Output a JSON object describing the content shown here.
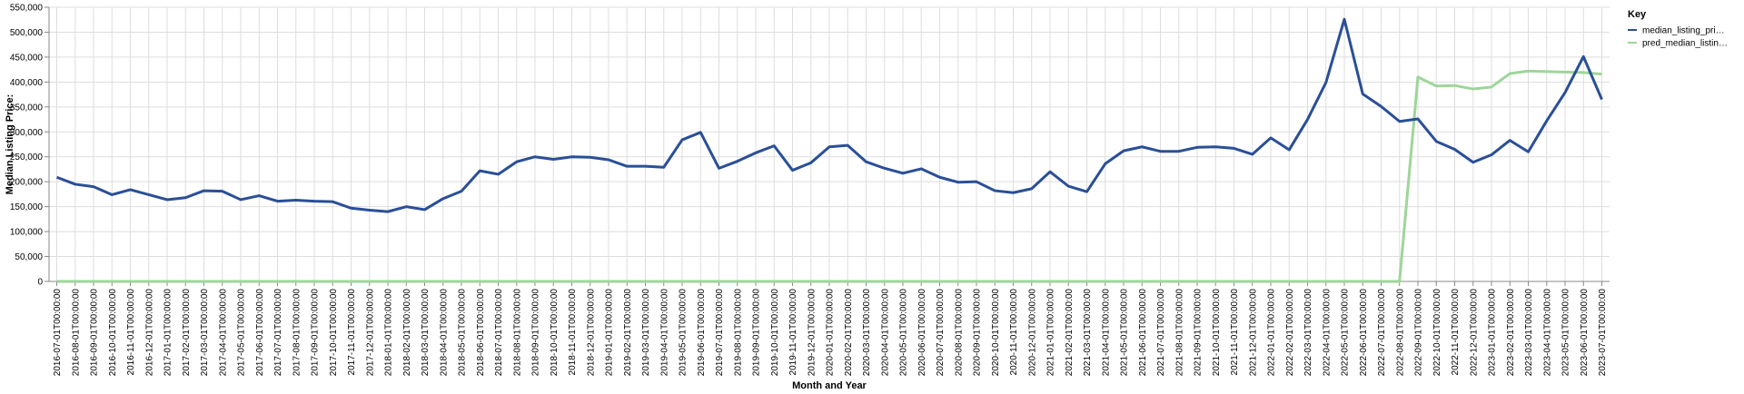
{
  "chart_data": {
    "type": "line",
    "xlabel": "Month and Year",
    "ylabel": "Median Listing Price:",
    "ylim": [
      0,
      550000
    ],
    "yticks": [
      0,
      50000,
      100000,
      150000,
      200000,
      250000,
      300000,
      350000,
      400000,
      450000,
      500000,
      550000
    ],
    "y_tick_labels": [
      "0",
      "50,000",
      "100,000",
      "150,000",
      "200,000",
      "250,000",
      "300,000",
      "350,000",
      "400,000",
      "450,000",
      "500,000",
      "550,000"
    ],
    "grid": true,
    "legend": {
      "title": "Key",
      "placement": "top-right",
      "entries": [
        "median_listing_pri…",
        "pred_median_listin…"
      ]
    },
    "x": [
      "2016-07-01T00:00:00",
      "2016-08-01T00:00:00",
      "2016-09-01T00:00:00",
      "2016-10-01T00:00:00",
      "2016-11-01T00:00:00",
      "2016-12-01T00:00:00",
      "2017-01-01T00:00:00",
      "2017-02-01T00:00:00",
      "2017-03-01T00:00:00",
      "2017-04-01T00:00:00",
      "2017-05-01T00:00:00",
      "2017-06-01T00:00:00",
      "2017-07-01T00:00:00",
      "2017-08-01T00:00:00",
      "2017-09-01T00:00:00",
      "2017-10-01T00:00:00",
      "2017-11-01T00:00:00",
      "2017-12-01T00:00:00",
      "2018-01-01T00:00:00",
      "2018-02-01T00:00:00",
      "2018-03-01T00:00:00",
      "2018-04-01T00:00:00",
      "2018-05-01T00:00:00",
      "2018-06-01T00:00:00",
      "2018-07-01T00:00:00",
      "2018-08-01T00:00:00",
      "2018-09-01T00:00:00",
      "2018-10-01T00:00:00",
      "2018-11-01T00:00:00",
      "2018-12-01T00:00:00",
      "2019-01-01T00:00:00",
      "2019-02-01T00:00:00",
      "2019-03-01T00:00:00",
      "2019-04-01T00:00:00",
      "2019-05-01T00:00:00",
      "2019-06-01T00:00:00",
      "2019-07-01T00:00:00",
      "2019-08-01T00:00:00",
      "2019-09-01T00:00:00",
      "2019-10-01T00:00:00",
      "2019-11-01T00:00:00",
      "2019-12-01T00:00:00",
      "2020-01-01T00:00:00",
      "2020-02-01T00:00:00",
      "2020-03-01T00:00:00",
      "2020-04-01T00:00:00",
      "2020-05-01T00:00:00",
      "2020-06-01T00:00:00",
      "2020-07-01T00:00:00",
      "2020-08-01T00:00:00",
      "2020-09-01T00:00:00",
      "2020-10-01T00:00:00",
      "2020-11-01T00:00:00",
      "2020-12-01T00:00:00",
      "2021-01-01T00:00:00",
      "2021-02-01T00:00:00",
      "2021-03-01T00:00:00",
      "2021-04-01T00:00:00",
      "2021-05-01T00:00:00",
      "2021-06-01T00:00:00",
      "2021-07-01T00:00:00",
      "2021-08-01T00:00:00",
      "2021-09-01T00:00:00",
      "2021-10-01T00:00:00",
      "2021-11-01T00:00:00",
      "2021-12-01T00:00:00",
      "2022-01-01T00:00:00",
      "2022-02-01T00:00:00",
      "2022-03-01T00:00:00",
      "2022-04-01T00:00:00",
      "2022-05-01T00:00:00",
      "2022-06-01T00:00:00",
      "2022-07-01T00:00:00",
      "2022-08-01T00:00:00",
      "2022-09-01T00:00:00",
      "2022-10-01T00:00:00",
      "2022-11-01T00:00:00",
      "2022-12-01T00:00:00",
      "2023-01-01T00:00:00",
      "2023-02-01T00:00:00",
      "2023-03-01T00:00:00",
      "2023-04-01T00:00:00",
      "2023-05-01T00:00:00",
      "2023-06-01T00:00:00",
      "2023-07-01T00:00:00"
    ],
    "series": [
      {
        "name": "median_listing_pri…",
        "color": "#2a4f97",
        "values": [
          209000,
          195000,
          190000,
          174000,
          184000,
          174000,
          164000,
          168000,
          182000,
          181000,
          164000,
          172000,
          161000,
          163000,
          161000,
          160000,
          147000,
          143000,
          140000,
          150000,
          144000,
          166000,
          181000,
          222000,
          215000,
          240000,
          250000,
          245000,
          250000,
          249000,
          244000,
          231000,
          231000,
          229000,
          284000,
          299000,
          227000,
          241000,
          258000,
          272000,
          223000,
          238000,
          270000,
          273000,
          240000,
          227000,
          217000,
          226000,
          209000,
          199000,
          200000,
          182000,
          178000,
          186000,
          220000,
          191000,
          180000,
          236000,
          262000,
          270000,
          261000,
          261000,
          269000,
          270000,
          267000,
          255000,
          288000,
          264000,
          325000,
          399000,
          526000,
          376000,
          351000,
          321000,
          326000,
          281000,
          265000,
          239000,
          254000,
          283000,
          260000,
          322000,
          379000,
          451000,
          365000
        ]
      },
      {
        "name": "pred_median_listin…",
        "color": "#9ed59a",
        "values": [
          0,
          0,
          0,
          0,
          0,
          0,
          0,
          0,
          0,
          0,
          0,
          0,
          0,
          0,
          0,
          0,
          0,
          0,
          0,
          0,
          0,
          0,
          0,
          0,
          0,
          0,
          0,
          0,
          0,
          0,
          0,
          0,
          0,
          0,
          0,
          0,
          0,
          0,
          0,
          0,
          0,
          0,
          0,
          0,
          0,
          0,
          0,
          0,
          0,
          0,
          0,
          0,
          0,
          0,
          0,
          0,
          0,
          0,
          0,
          0,
          0,
          0,
          0,
          0,
          0,
          0,
          0,
          0,
          0,
          0,
          0,
          0,
          0,
          0,
          410000,
          392000,
          393000,
          386000,
          390000,
          417000,
          422000,
          421000,
          420000,
          419000,
          416000
        ]
      }
    ]
  }
}
